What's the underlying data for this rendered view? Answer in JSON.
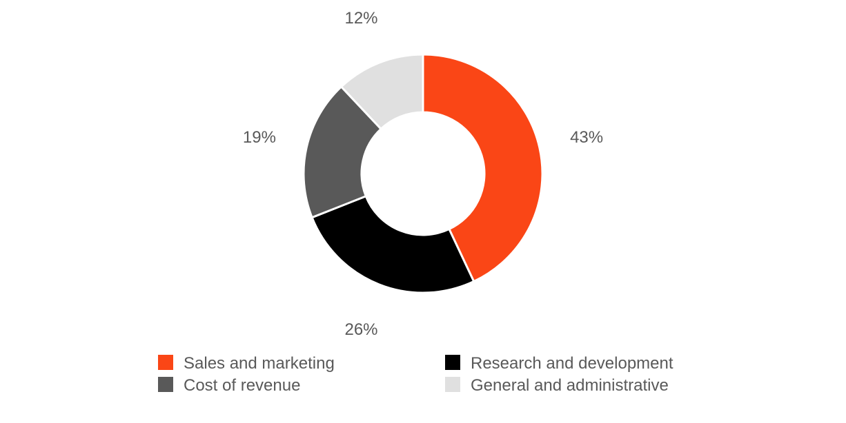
{
  "chart_data": {
    "type": "pie",
    "variant": "donut",
    "title": "",
    "categories": [
      "Sales and marketing",
      "Research and development",
      "Cost of revenue",
      "General and administrative"
    ],
    "values": [
      43,
      26,
      19,
      12
    ],
    "value_labels": [
      "43%",
      "26%",
      "19%",
      "12%"
    ],
    "colors": [
      "#fa4616",
      "#000000",
      "#595959",
      "#e0e0e0"
    ],
    "legend": {
      "placement": "bottom",
      "entries": [
        "Sales and marketing",
        "Research and development",
        "Cost of revenue",
        "General and administrative"
      ]
    }
  }
}
